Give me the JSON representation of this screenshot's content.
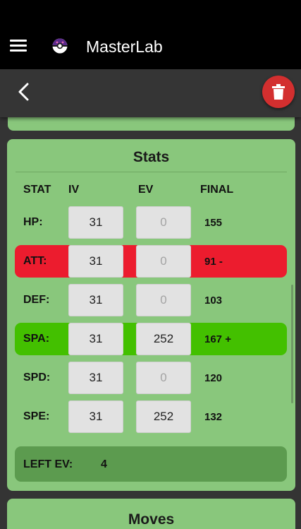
{
  "app": {
    "title": "MasterLab"
  },
  "stats": {
    "title": "Stats",
    "headers": {
      "stat": "STAT",
      "iv": "IV",
      "ev": "EV",
      "final": "FINAL"
    },
    "rows": [
      {
        "label": "HP:",
        "iv": "31",
        "ev": "0",
        "final": "155",
        "highlight": "none"
      },
      {
        "label": "ATT:",
        "iv": "31",
        "ev": "0",
        "final": "91 -",
        "highlight": "red"
      },
      {
        "label": "DEF:",
        "iv": "31",
        "ev": "0",
        "final": "103",
        "highlight": "none"
      },
      {
        "label": "SPA:",
        "iv": "31",
        "ev": "252",
        "final": "167 +",
        "highlight": "green"
      },
      {
        "label": "SPD:",
        "iv": "31",
        "ev": "0",
        "final": "120",
        "highlight": "none"
      },
      {
        "label": "SPE:",
        "iv": "31",
        "ev": "252",
        "final": "132",
        "highlight": "none"
      }
    ],
    "left_ev": {
      "label": "LEFT EV:",
      "value": "4"
    }
  },
  "moves": {
    "title": "Moves"
  },
  "colors": {
    "card": "#89c77c",
    "decrease": "#ec1c2e",
    "increase": "#43c000",
    "delete_button": "#d32f2f"
  },
  "icons": {
    "menu": "hamburger-menu-icon",
    "logo": "pokeball-icon",
    "back": "chevron-left-icon",
    "delete": "trash-icon"
  }
}
